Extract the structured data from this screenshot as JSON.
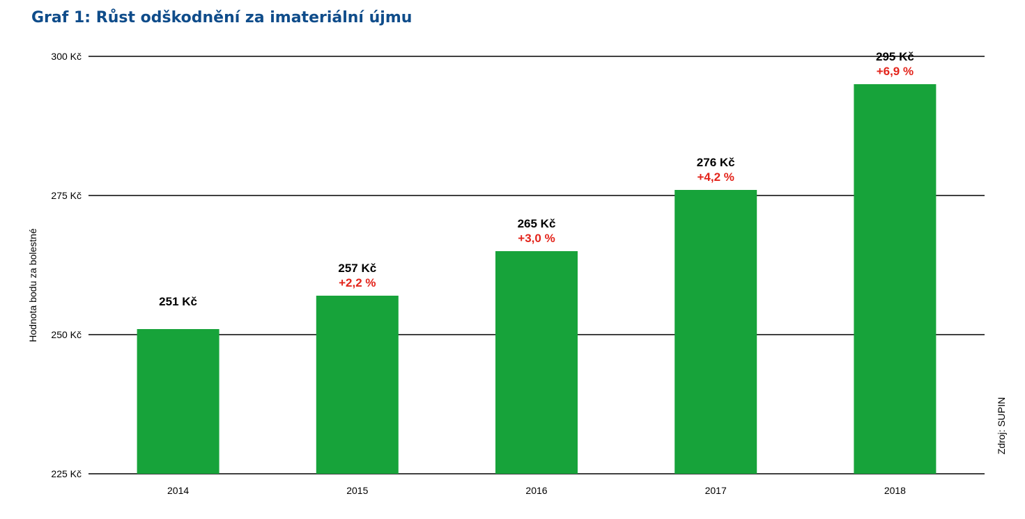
{
  "colors": {
    "title": "#0f4c8a",
    "bar": "#17a33a",
    "change": "#e3241b",
    "grid": "#000000"
  },
  "source": "Zdroj: SUPIN",
  "chart_data": {
    "type": "bar",
    "title": "Graf 1: Růst odškodnění za imateriální újmu",
    "ylabel": "Hodnota bodu za bolestné",
    "xlabel": "",
    "ylim": [
      225,
      300
    ],
    "y_ticks": [
      225,
      250,
      275,
      300
    ],
    "y_tick_labels": [
      "225 Kč",
      "250 Kč",
      "275 Kč",
      "300 Kč"
    ],
    "grid": "horizontal",
    "categories": [
      "2014",
      "2015",
      "2016",
      "2017",
      "2018"
    ],
    "values": [
      251,
      257,
      265,
      276,
      295
    ],
    "value_labels": [
      "251 Kč",
      "257 Kč",
      "265 Kč",
      "276 Kč",
      "295 Kč"
    ],
    "change_labels": [
      "",
      "+2,2 %",
      "+3,0 %",
      "+4,2 %",
      "+6,9 %"
    ]
  }
}
